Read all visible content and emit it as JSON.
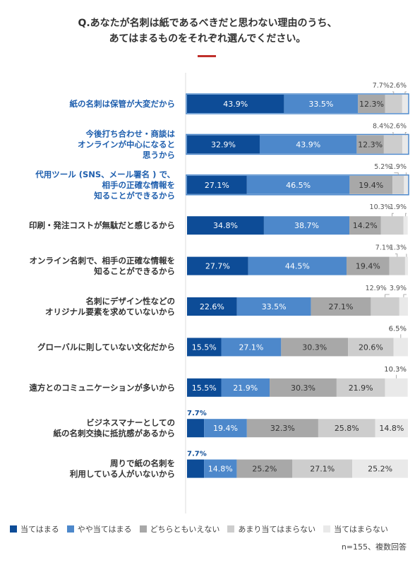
{
  "title": {
    "line1": "Q.あなたが名刺は紙であるべきだと思わない理由のうち、",
    "line2": "あてはまるものをそれぞれ選んでください。"
  },
  "colors": {
    "series": [
      "#0d4c97",
      "#4d88cb",
      "#a8a8a8",
      "#cdcdcd",
      "#e9e9e9"
    ],
    "highlight_label": "#1f5fae",
    "label_default": "#333333",
    "highlight_box": "#4d88cb",
    "title_rule": "#c0302b",
    "axis": "#dddddd"
  },
  "legend": [
    {
      "label": "当てはまる"
    },
    {
      "label": "やや当てはまる"
    },
    {
      "label": "どちらともいえない"
    },
    {
      "label": "あまり当てはまらない"
    },
    {
      "label": "当てはまらない"
    }
  ],
  "note": "n=155、複数回答",
  "chart_data": {
    "type": "bar",
    "orientation": "horizontal",
    "stacked": true,
    "unit": "%",
    "xlim": [
      0,
      100
    ],
    "grid": false,
    "legend_position": "bottom",
    "categories": [
      {
        "lines": [
          "紙の名刺は保管が大変だから"
        ],
        "highlight": true
      },
      {
        "lines": [
          "今後打ち合わせ・商談は",
          "オンラインが中心になると",
          "思うから"
        ],
        "highlight": true
      },
      {
        "lines": [
          "代用ツール (SNS、メール署名 ) で、",
          "相手の正確な情報を",
          "知ることができるから"
        ],
        "highlight": true
      },
      {
        "lines": [
          "印刷・発注コストが無駄だと感じるから"
        ],
        "highlight": false
      },
      {
        "lines": [
          "オンライン名刺で、相手の正確な情報を",
          "知ることができるから"
        ],
        "highlight": false
      },
      {
        "lines": [
          "名刺にデザイン性などの",
          "オリジナル要素を求めていないから"
        ],
        "highlight": false
      },
      {
        "lines": [
          "グローバルに則していない文化だから"
        ],
        "highlight": false
      },
      {
        "lines": [
          "遠方とのコミュニケーションが多いから"
        ],
        "highlight": false
      },
      {
        "lines": [
          "ビジネスマナーとしての",
          "紙の名刺交換に抵抗感があるから"
        ],
        "highlight": false
      },
      {
        "lines": [
          "周りで紙の名刺を",
          "利用している人がいないから"
        ],
        "highlight": false
      }
    ],
    "series": [
      {
        "name": "当てはまる",
        "values": [
          43.9,
          32.9,
          27.1,
          34.8,
          27.7,
          22.6,
          15.5,
          15.5,
          7.7,
          7.7
        ]
      },
      {
        "name": "やや当てはまる",
        "values": [
          33.5,
          43.9,
          46.5,
          38.7,
          44.5,
          33.5,
          27.1,
          21.9,
          19.4,
          14.8
        ]
      },
      {
        "name": "どちらともいえない",
        "values": [
          12.3,
          12.3,
          19.4,
          14.2,
          19.4,
          27.1,
          30.3,
          30.3,
          32.3,
          25.2
        ]
      },
      {
        "name": "あまり当てはまらない",
        "values": [
          7.7,
          8.4,
          5.2,
          10.3,
          7.1,
          12.9,
          20.6,
          21.9,
          25.8,
          27.1
        ]
      },
      {
        "name": "当てはまらない",
        "values": [
          2.6,
          2.6,
          1.9,
          1.9,
          1.3,
          3.9,
          6.5,
          10.3,
          14.8,
          25.2
        ]
      }
    ]
  }
}
